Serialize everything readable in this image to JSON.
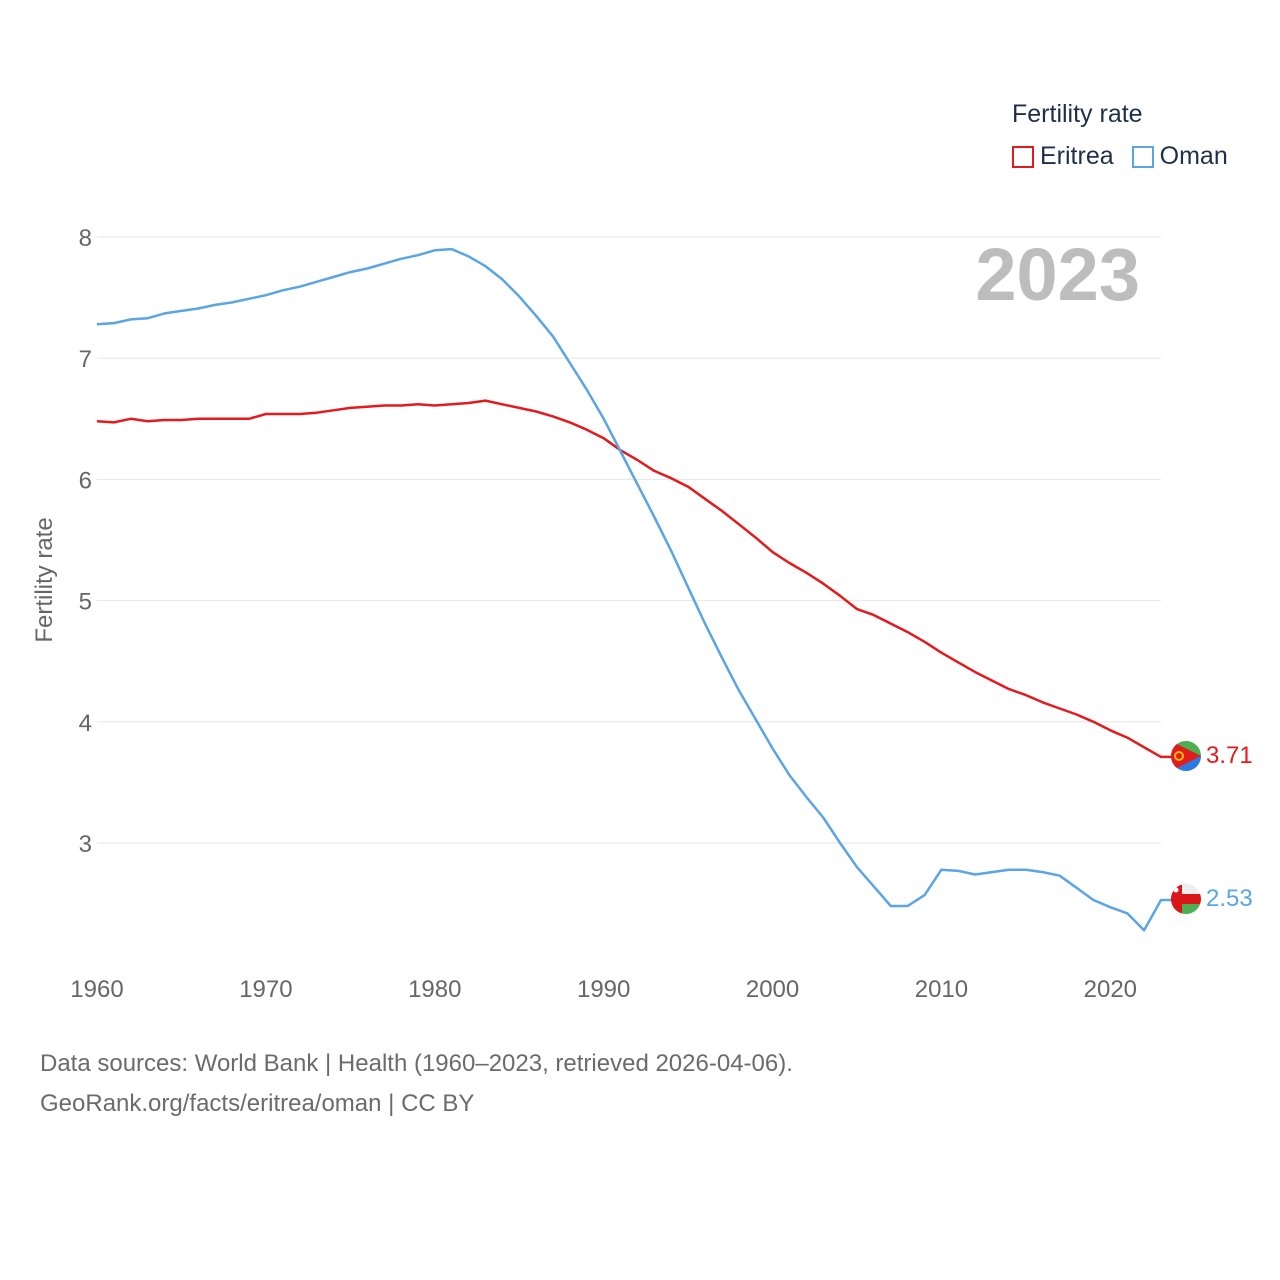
{
  "colors": {
    "eritrea": "#e41a1c",
    "oman": "#5ba4e6",
    "grid": "#e6e6e6",
    "axis_text": "#666666",
    "year_watermark": "#bdbdbd"
  },
  "legend": {
    "title": "Fertility rate",
    "items": [
      "Eritrea",
      "Oman"
    ]
  },
  "year_watermark": "2023",
  "end_labels": {
    "eritrea": "3.71",
    "oman": "2.53"
  },
  "footer": {
    "line1": "Data sources: World Bank | Health (1960–2023, retrieved 2026-04-06).",
    "line2": "GeoRank.org/facts/eritrea/oman | CC BY"
  },
  "chart_data": {
    "type": "line",
    "title": "",
    "xlabel": "",
    "ylabel": "Fertility rate",
    "xlim": [
      1960,
      2023
    ],
    "ylim": [
      2.2,
      8.0
    ],
    "x_ticks": [
      1960,
      1970,
      1980,
      1990,
      2000,
      2010,
      2020
    ],
    "y_ticks": [
      3,
      4,
      5,
      6,
      7,
      8
    ],
    "x": [
      1960,
      1961,
      1962,
      1963,
      1964,
      1965,
      1966,
      1967,
      1968,
      1969,
      1970,
      1971,
      1972,
      1973,
      1974,
      1975,
      1976,
      1977,
      1978,
      1979,
      1980,
      1981,
      1982,
      1983,
      1984,
      1985,
      1986,
      1987,
      1988,
      1989,
      1990,
      1991,
      1992,
      1993,
      1994,
      1995,
      1996,
      1997,
      1998,
      1999,
      2000,
      2001,
      2002,
      2003,
      2004,
      2005,
      2006,
      2007,
      2008,
      2009,
      2010,
      2011,
      2012,
      2013,
      2014,
      2015,
      2016,
      2017,
      2018,
      2019,
      2020,
      2021,
      2022,
      2023
    ],
    "series": [
      {
        "name": "Eritrea",
        "values": [
          6.48,
          6.47,
          6.5,
          6.48,
          6.49,
          6.49,
          6.5,
          6.5,
          6.5,
          6.5,
          6.54,
          6.54,
          6.54,
          6.55,
          6.57,
          6.59,
          6.6,
          6.61,
          6.61,
          6.62,
          6.61,
          6.62,
          6.63,
          6.65,
          6.62,
          6.59,
          6.56,
          6.52,
          6.47,
          6.41,
          6.34,
          6.24,
          6.16,
          6.07,
          6.01,
          5.94,
          5.84,
          5.74,
          5.63,
          5.52,
          5.4,
          5.31,
          5.23,
          5.14,
          5.04,
          4.93,
          4.88,
          4.81,
          4.74,
          4.66,
          4.57,
          4.49,
          4.41,
          4.34,
          4.27,
          4.22,
          4.16,
          4.11,
          4.06,
          4.0,
          3.93,
          3.87,
          3.79,
          3.71
        ]
      },
      {
        "name": "Oman",
        "values": [
          7.28,
          7.29,
          7.32,
          7.33,
          7.37,
          7.39,
          7.41,
          7.44,
          7.46,
          7.49,
          7.52,
          7.56,
          7.59,
          7.63,
          7.67,
          7.71,
          7.74,
          7.78,
          7.82,
          7.85,
          7.89,
          7.9,
          7.84,
          7.76,
          7.65,
          7.51,
          7.35,
          7.18,
          6.96,
          6.74,
          6.5,
          6.23,
          5.96,
          5.69,
          5.41,
          5.11,
          4.81,
          4.53,
          4.26,
          4.02,
          3.78,
          3.56,
          3.38,
          3.21,
          3.0,
          2.8,
          2.64,
          2.48,
          2.48,
          2.57,
          2.78,
          2.77,
          2.74,
          2.76,
          2.78,
          2.78,
          2.76,
          2.73,
          2.63,
          2.53,
          2.47,
          2.42,
          2.28,
          2.53
        ]
      }
    ]
  }
}
